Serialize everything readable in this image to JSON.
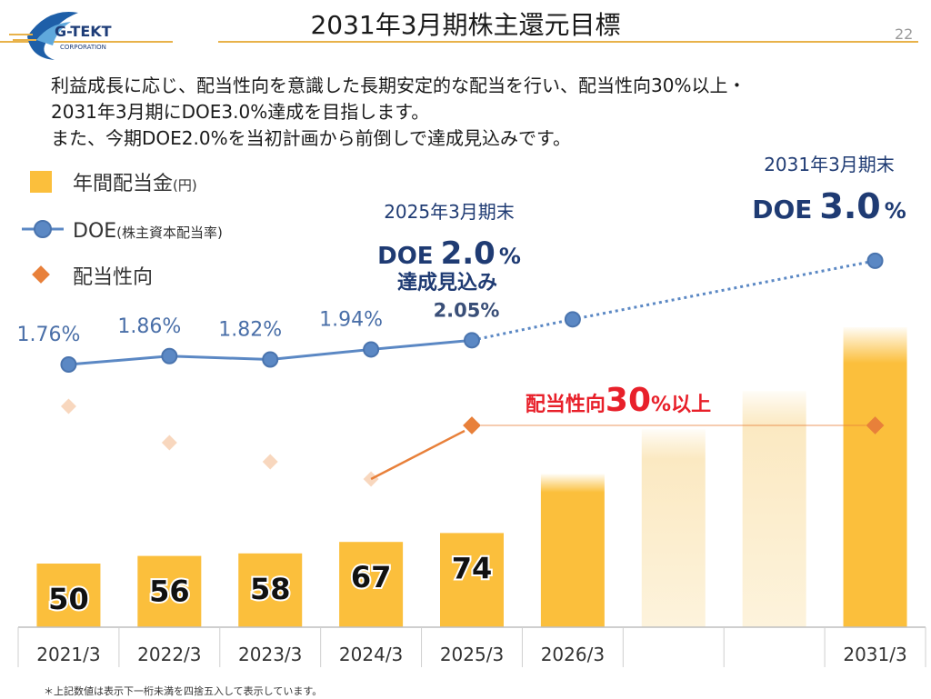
{
  "page": {
    "title": "2031年3月期株主還元目標",
    "page_number": "22",
    "logo": {
      "name": "G-TEKT",
      "sub": "CORPORATION"
    },
    "intro_lines": [
      "利益成長に応じ、配当性向を意識した長期安定的な配当を行い、配当性向30%以上・",
      "2031年3月期にDOE3.0%達成を目指します。",
      "また、今期DOE2.0%を当初計画から前倒しで達成見込みです。"
    ],
    "footnote": "＊上記数値は表示下一桁未満を四捨五入して表示しています。"
  },
  "colors": {
    "bar": "#FBBF3C",
    "doe_line": "#5B88C4",
    "payout": "#E8803A",
    "navy": "#1F3B73",
    "red": "#E8202A",
    "title_rule": "#E8B24A"
  },
  "legend": {
    "items": [
      {
        "label": "年間配当金",
        "unit": "(円)"
      },
      {
        "label": "DOE",
        "unit": "(株主資本配当率)"
      },
      {
        "label": "配当性向",
        "unit": ""
      }
    ]
  },
  "callouts": {
    "fy2025": {
      "heading": "2025年3月期末",
      "doe_prefix": "DOE",
      "doe_value": "2.0",
      "unit": "%",
      "sub": "達成見込み"
    },
    "fy2031": {
      "heading": "2031年3月期末",
      "doe_prefix": "DOE",
      "doe_value": "3.0",
      "unit": "%"
    },
    "payout": {
      "prefix": "配当性向",
      "value": "30",
      "suffix": "%以上"
    }
  },
  "chart_data": {
    "type": "bar",
    "categories": [
      "2021/3",
      "2022/3",
      "2023/3",
      "2024/3",
      "2025/3",
      "2026/3",
      "",
      "",
      "2031/3"
    ],
    "series": [
      {
        "name": "年間配当金",
        "values": [
          50,
          56,
          58,
          67,
          74,
          null,
          null,
          null,
          null
        ],
        "data_labels": [
          "50",
          "56",
          "58",
          "67",
          "74",
          "",
          "",
          "",
          ""
        ],
        "projected_relative_height": [
          null,
          null,
          null,
          null,
          null,
          0.24,
          0.31,
          0.37,
          0.47
        ]
      },
      {
        "name": "DOE",
        "values": [
          1.76,
          1.86,
          1.82,
          1.94,
          2.05,
          2.3,
          null,
          null,
          3.0
        ],
        "data_labels": [
          "1.76%",
          "1.86%",
          "1.82%",
          "1.94%",
          "2.05%",
          "",
          "",
          "",
          ""
        ]
      },
      {
        "name": "配当性向",
        "values": [
          null,
          null,
          null,
          null,
          30,
          null,
          null,
          null,
          30
        ]
      }
    ],
    "grid": false,
    "legend_position": "top-left"
  }
}
